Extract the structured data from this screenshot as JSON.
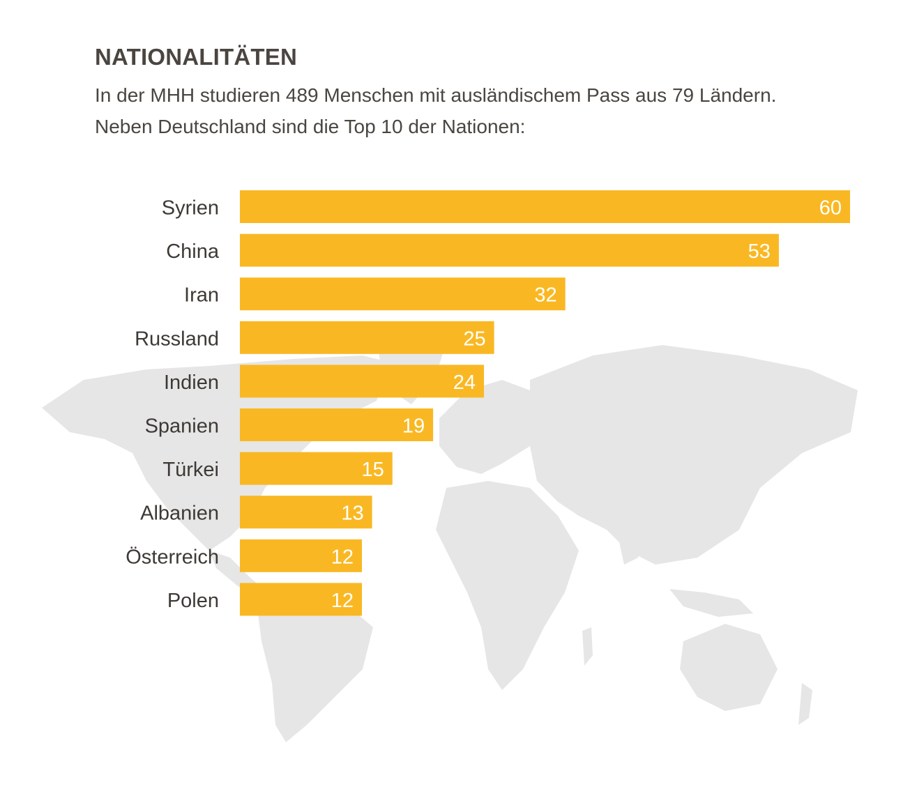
{
  "header": {
    "title": "NATIONALITÄTEN",
    "subtitle_line1": "In der MHH studieren 489 Menschen mit ausländischem Pass aus 79 Ländern.",
    "subtitle_line2": "Neben Deutschland sind die Top 10 der Nationen:"
  },
  "colors": {
    "bar": "#f9b823",
    "map": "#e6e6e6",
    "text": "#4a4540"
  },
  "chart_data": {
    "type": "bar",
    "orientation": "horizontal",
    "categories": [
      "Syrien",
      "China",
      "Iran",
      "Russland",
      "Indien",
      "Spanien",
      "Türkei",
      "Albanien",
      "Österreich",
      "Polen"
    ],
    "values": [
      60,
      53,
      32,
      25,
      24,
      19,
      15,
      13,
      12,
      12
    ],
    "value_labels": "inside-end",
    "grid": false,
    "background": "world-map"
  }
}
